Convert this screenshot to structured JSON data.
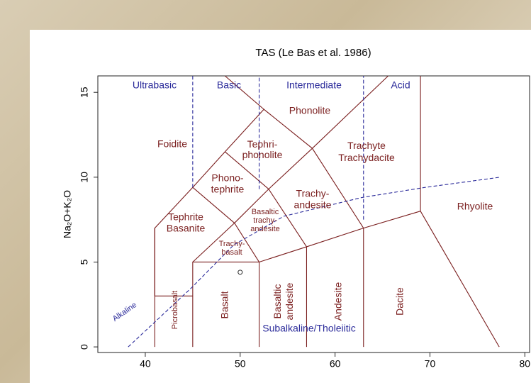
{
  "chart_data": {
    "type": "scatter",
    "title": "TAS (Le Bas et al. 1986)",
    "ylabel": "Na₂O+K₂O",
    "xlim": [
      35,
      80.5
    ],
    "ylim": [
      -0.33,
      15.97
    ],
    "xticks": [
      40,
      50,
      60,
      70,
      80
    ],
    "yticks": [
      0,
      5,
      10,
      15
    ],
    "x": [
      50.0
    ],
    "y": [
      4.4
    ],
    "boundaries": [
      [
        [
          41,
          0
        ],
        [
          41,
          7
        ],
        [
          45,
          9.4
        ],
        [
          48.4,
          11.5
        ],
        [
          52.5,
          14
        ],
        [
          57.6,
          11.7
        ],
        [
          63,
          7
        ],
        [
          69,
          8
        ],
        [
          77.3,
          0
        ]
      ],
      [
        [
          41,
          3
        ],
        [
          45,
          3
        ]
      ],
      [
        [
          45,
          0
        ],
        [
          45,
          5
        ],
        [
          52,
          5
        ],
        [
          57,
          5.9
        ],
        [
          63,
          7
        ]
      ],
      [
        [
          52,
          0
        ],
        [
          52,
          5
        ]
      ],
      [
        [
          57,
          0
        ],
        [
          57,
          5.9
        ]
      ],
      [
        [
          63,
          0
        ],
        [
          63,
          7
        ]
      ],
      [
        [
          69,
          8
        ],
        [
          69,
          15.97
        ]
      ],
      [
        [
          45,
          9.4
        ],
        [
          49.4,
          7.3
        ],
        [
          53,
          9.3
        ],
        [
          57.6,
          11.7
        ]
      ],
      [
        [
          45,
          5
        ],
        [
          49.4,
          7.3
        ],
        [
          52,
          5
        ]
      ],
      [
        [
          53,
          9.3
        ],
        [
          57,
          5.9
        ]
      ],
      [
        [
          48.4,
          11.5
        ],
        [
          53,
          9.3
        ]
      ],
      [
        [
          52.5,
          14
        ],
        [
          48.4,
          15.97
        ]
      ],
      [
        [
          57.6,
          11.7
        ],
        [
          65.6,
          15.97
        ]
      ],
      [
        [
          41,
          7
        ],
        [
          41,
          3
        ]
      ]
    ],
    "dashed_lines": [
      [
        [
          45,
          9.4
        ],
        [
          45,
          15.97
        ]
      ],
      [
        [
          52,
          9.3
        ],
        [
          52,
          15.97
        ]
      ],
      [
        [
          63,
          7.5
        ],
        [
          63,
          15.97
        ]
      ]
    ],
    "alkaline_line": [
      [
        38.2,
        0
      ],
      [
        44.9,
        3.5
      ],
      [
        49.3,
        6.0
      ],
      [
        54.6,
        7.7
      ],
      [
        62.8,
        8.8
      ],
      [
        69.5,
        9.4
      ],
      [
        77.4,
        10.0
      ]
    ],
    "groups": [
      "Ultrabasic",
      "Basic",
      "Intermediate",
      "Acid"
    ],
    "fields": [
      [
        "Phonolite"
      ],
      [
        "Foidite"
      ],
      [
        "Tephri-",
        "phonolite"
      ],
      [
        "Trachyte",
        "Trachydacite"
      ],
      [
        "Phono-",
        "tephrite"
      ],
      [
        "Trachy-",
        "andesite"
      ],
      [
        "Rhyolite"
      ],
      [
        "Tephrite",
        "Basanite"
      ],
      [
        "Basaltic",
        "trachy-",
        "andesite"
      ],
      [
        "Trachy-",
        "basalt"
      ],
      [
        "Picrobasalt"
      ],
      [
        "Basalt"
      ],
      [
        "Basaltic",
        "andesite"
      ],
      [
        "Andesite"
      ],
      [
        "Dacite"
      ]
    ],
    "series_labels": [
      "Alkaline",
      "Subalkaline/Tholeiitic"
    ]
  }
}
